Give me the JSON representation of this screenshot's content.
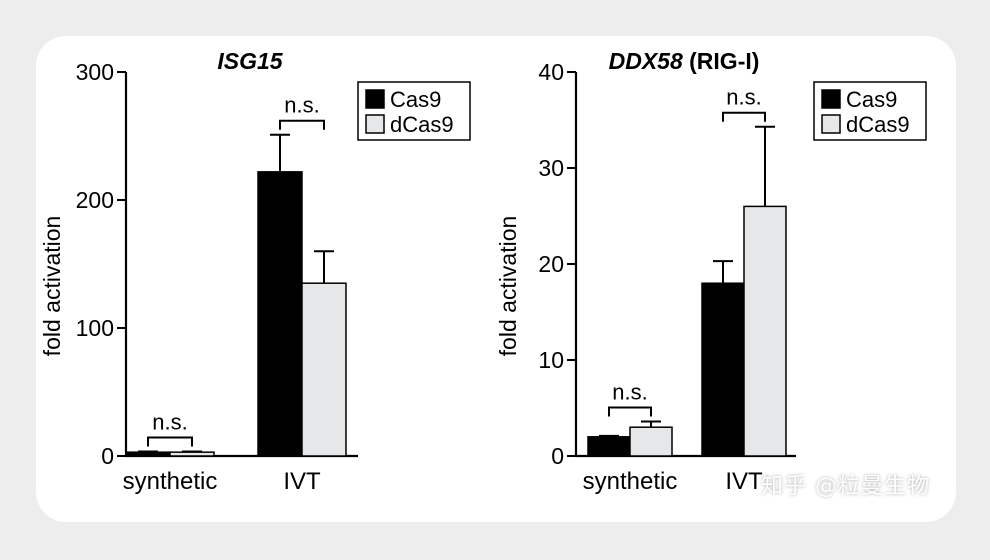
{
  "chart_data": [
    {
      "type": "bar",
      "title": "ISG15",
      "title_suffix": "",
      "ylabel": "fold activation",
      "xlabel": "",
      "ylim": [
        0,
        300
      ],
      "yticks": [
        0,
        100,
        200,
        300
      ],
      "categories": [
        "synthetic",
        "IVT"
      ],
      "series": [
        {
          "name": "Cas9",
          "color": "#000000",
          "values": [
            3,
            222
          ],
          "errors": [
            0.5,
            29
          ]
        },
        {
          "name": "dCas9",
          "color": "#e6e7e9",
          "values": [
            3,
            135
          ],
          "errors": [
            0.5,
            25
          ]
        }
      ],
      "annotations": [
        {
          "category": 0,
          "text": "n.s."
        },
        {
          "category": 1,
          "text": "n.s."
        }
      ],
      "legend": "top-right",
      "grid": false
    },
    {
      "type": "bar",
      "title": "DDX58",
      "title_suffix": " (RIG-I)",
      "ylabel": "fold activation",
      "xlabel": "",
      "ylim": [
        0,
        40
      ],
      "yticks": [
        0,
        10,
        20,
        30,
        40
      ],
      "categories": [
        "synthetic",
        "IVT"
      ],
      "series": [
        {
          "name": "Cas9",
          "color": "#000000",
          "values": [
            2,
            18
          ],
          "errors": [
            0.1,
            2.3
          ]
        },
        {
          "name": "dCas9",
          "color": "#e6e7e9",
          "values": [
            3,
            26
          ],
          "errors": [
            0.6,
            8.3
          ]
        }
      ],
      "annotations": [
        {
          "category": 0,
          "text": "n.s."
        },
        {
          "category": 1,
          "text": "n.s."
        }
      ],
      "legend": "top-right",
      "grid": false
    }
  ],
  "watermark": "知乎 @粒曼生物"
}
